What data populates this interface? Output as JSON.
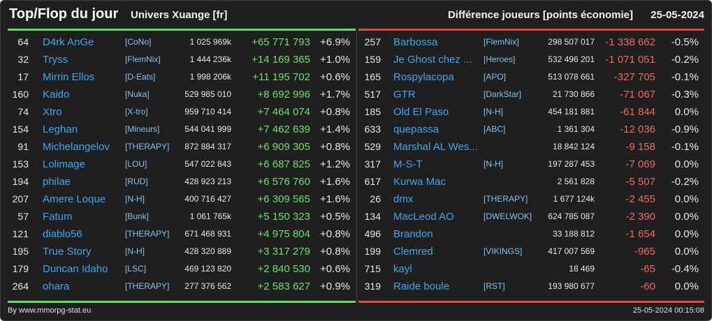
{
  "header": {
    "title": "Top/Flop du jour",
    "universe": "Univers Xuange [fr]",
    "diff_title": "Différence joueurs [points économie]",
    "date": "25-05-2024"
  },
  "colors": {
    "background": "#1f1f1f",
    "top_accent": "#5fe05f",
    "flop_accent": "#e04a3f",
    "player_link": "#3aa8f0",
    "gain": "#6be06b",
    "loss": "#ef6a5e"
  },
  "top": [
    {
      "rank": "64",
      "player": "D4rk AnGe",
      "alliance": "[CoNo]",
      "points": "1 025 969k",
      "diff": "+65 771 793",
      "pct": "+6.9%"
    },
    {
      "rank": "32",
      "player": "Tryss",
      "alliance": "[FlemNix]",
      "points": "1 444 236k",
      "diff": "+14 169 365",
      "pct": "+1.0%"
    },
    {
      "rank": "17",
      "player": "Mirrin Ellos",
      "alliance": "[D-Eats]",
      "points": "1 998 206k",
      "diff": "+11 195 702",
      "pct": "+0.6%"
    },
    {
      "rank": "160",
      "player": "Kaido",
      "alliance": "[Nuka]",
      "points": "529 985 010",
      "diff": "+8 692 996",
      "pct": "+1.7%"
    },
    {
      "rank": "74",
      "player": "Xtro",
      "alliance": "[X-tro]",
      "points": "959 710 414",
      "diff": "+7 464 074",
      "pct": "+0.8%"
    },
    {
      "rank": "154",
      "player": "Leghan",
      "alliance": "[Mineurs]",
      "points": "544 041 999",
      "diff": "+7 462 639",
      "pct": "+1.4%"
    },
    {
      "rank": "91",
      "player": "Michelangelov",
      "alliance": "[THERAPY]",
      "points": "872 884 317",
      "diff": "+6 909 305",
      "pct": "+0.8%"
    },
    {
      "rank": "153",
      "player": "Lolimage",
      "alliance": "[LOU]",
      "points": "547 022 843",
      "diff": "+6 687 825",
      "pct": "+1.2%"
    },
    {
      "rank": "194",
      "player": "philae",
      "alliance": "[RUD]",
      "points": "428 923 213",
      "diff": "+6 576 760",
      "pct": "+1.6%"
    },
    {
      "rank": "207",
      "player": "Amere Loque",
      "alliance": "[N-H]",
      "points": "400 716 427",
      "diff": "+6 309 565",
      "pct": "+1.6%"
    },
    {
      "rank": "57",
      "player": "Fatum",
      "alliance": "[Bunk]",
      "points": "1 061 765k",
      "diff": "+5 150 323",
      "pct": "+0.5%"
    },
    {
      "rank": "121",
      "player": "diablo56",
      "alliance": "[THERAPY]",
      "points": "671 468 931",
      "diff": "+4 975 804",
      "pct": "+0.8%"
    },
    {
      "rank": "195",
      "player": "True Story",
      "alliance": "[N-H]",
      "points": "428 320 889",
      "diff": "+3 317 279",
      "pct": "+0.8%"
    },
    {
      "rank": "179",
      "player": "Duncan Idaho",
      "alliance": "[LSC]",
      "points": "469 123 820",
      "diff": "+2 840 530",
      "pct": "+0.6%"
    },
    {
      "rank": "264",
      "player": "ohara",
      "alliance": "[THERAPY]",
      "points": "277 376 562",
      "diff": "+2 583 627",
      "pct": "+0.9%"
    }
  ],
  "flop": [
    {
      "rank": "257",
      "player": "Barbossa",
      "alliance": "[FlemNix]",
      "points": "298 507 017",
      "diff": "-1 338 662",
      "pct": "-0.5%"
    },
    {
      "rank": "159",
      "player": "Je Ghost chez ...",
      "alliance": "[Heroes]",
      "points": "532 496 201",
      "diff": "-1 071 051",
      "pct": "-0.2%"
    },
    {
      "rank": "165",
      "player": "Rospylacopa",
      "alliance": "[APO]",
      "points": "513 078 661",
      "diff": "-327 705",
      "pct": "-0.1%"
    },
    {
      "rank": "517",
      "player": "GTR",
      "alliance": "[DarkStar]",
      "points": "21 730 866",
      "diff": "-71 067",
      "pct": "-0.3%"
    },
    {
      "rank": "185",
      "player": "Old El Paso",
      "alliance": "[N-H]",
      "points": "454 181 881",
      "diff": "-61 844",
      "pct": "0.0%"
    },
    {
      "rank": "633",
      "player": "quepassa",
      "alliance": "[ABC]",
      "points": "1 361 304",
      "diff": "-12 036",
      "pct": "-0.9%"
    },
    {
      "rank": "529",
      "player": "Marshal AL Wes...",
      "alliance": "",
      "points": "18 842 124",
      "diff": "-9 158",
      "pct": "-0.1%"
    },
    {
      "rank": "317",
      "player": "M-S-T",
      "alliance": "[N-H]",
      "points": "197 287 453",
      "diff": "-7 069",
      "pct": "0.0%"
    },
    {
      "rank": "617",
      "player": "Kurwa Mac",
      "alliance": "",
      "points": "2 561 828",
      "diff": "-5 507",
      "pct": "-0.2%"
    },
    {
      "rank": "26",
      "player": "dmx",
      "alliance": "[THERAPY]",
      "points": "1 677 124k",
      "diff": "-2 455",
      "pct": "0.0%"
    },
    {
      "rank": "134",
      "player": "MacLeod AO",
      "alliance": "[DWELWOK]",
      "points": "624 785 087",
      "diff": "-2 390",
      "pct": "0.0%"
    },
    {
      "rank": "496",
      "player": "Brandon",
      "alliance": "",
      "points": "33 188 812",
      "diff": "-1 654",
      "pct": "0.0%"
    },
    {
      "rank": "199",
      "player": "Clemred",
      "alliance": "[VIKINGS]",
      "points": "417 007 569",
      "diff": "-965",
      "pct": "0.0%"
    },
    {
      "rank": "715",
      "player": "kayl",
      "alliance": "",
      "points": "18 469",
      "diff": "-65",
      "pct": "-0.4%"
    },
    {
      "rank": "319",
      "player": "Raide boule",
      "alliance": "[RST]",
      "points": "193 980 677",
      "diff": "-60",
      "pct": "0.0%"
    }
  ],
  "footer": {
    "credit": "By www.mmorpg-stat.eu",
    "timestamp": "25-05-2024 00:15:08"
  }
}
